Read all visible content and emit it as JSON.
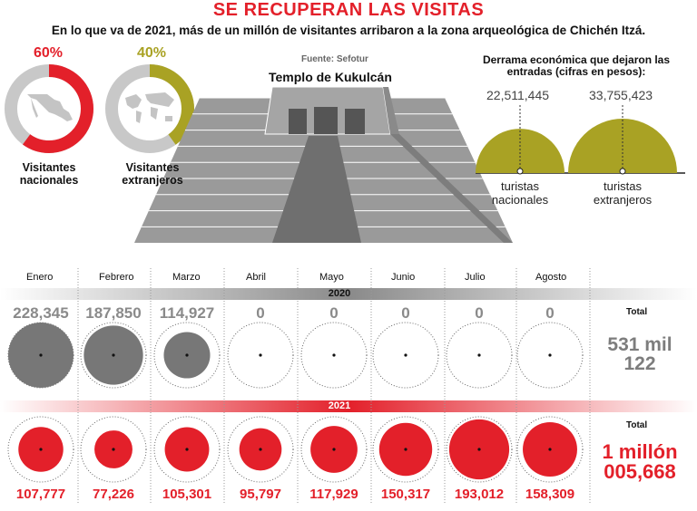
{
  "header": {
    "title": "SE RECUPERAN LAS VISITAS",
    "subtitle": "En lo que va de 2021, más de un millón de visitantes arribaron a la zona arqueológica de Chichén Itzá."
  },
  "visitor_split": {
    "national": {
      "percent_label": "60%",
      "label_line1": "Visitantes",
      "label_line2": "nacionales",
      "color": "#e3202a"
    },
    "foreign": {
      "percent_label": "40%",
      "label_line1": "Visitantes",
      "label_line2": "extranjeros",
      "color": "#a9a224"
    }
  },
  "source": "Fuente: Sefotur",
  "temple_title": "Templo de Kukulcán",
  "derrama": {
    "title_line1": "Derrama económica que dejaron las",
    "title_line2": "entradas (cifras en pesos):",
    "national": {
      "amount": "22,511,445",
      "line1": "turistas",
      "line2": "nacionales"
    },
    "foreign": {
      "amount": "33,755,423",
      "line1": "turistas",
      "line2": "extranjeros"
    }
  },
  "totals": {
    "label": "Total",
    "total_2020_line1": "531 mil",
    "total_2020_line2": "122",
    "total_2021_line1": "1 millón",
    "total_2021_line2": "005,668"
  },
  "chart_data": [
    {
      "type": "pie",
      "title": "",
      "categories": [
        "Visitantes nacionales",
        "Visitantes extranjeros"
      ],
      "values": [
        60,
        40
      ]
    },
    {
      "type": "bar",
      "title": "Derrama económica que dejaron las entradas (cifras en pesos):",
      "categories": [
        "turistas nacionales",
        "turistas extranjeros"
      ],
      "values": [
        22511445,
        33755423
      ],
      "value_labels": [
        "22,511,445",
        "33,755,423"
      ]
    },
    {
      "type": "scatter",
      "title": "",
      "categories": [
        "Enero",
        "Febrero",
        "Marzo",
        "Abril",
        "Mayo",
        "Junio",
        "Julio",
        "Agosto"
      ],
      "series": [
        {
          "name": "2020",
          "values": [
            228345,
            187850,
            114927,
            0,
            0,
            0,
            0,
            0
          ],
          "value_labels": [
            "228,345",
            "187,850",
            "114,927",
            "0",
            "0",
            "0",
            "0",
            "0"
          ],
          "color": "#777777"
        },
        {
          "name": "2021",
          "values": [
            107777,
            77226,
            105301,
            95797,
            117929,
            150317,
            193012,
            158309
          ],
          "value_labels": [
            "107,777",
            "77,226",
            "105,301",
            "95,797",
            "117,929",
            "150,317",
            "193,012",
            "158,309"
          ],
          "color": "#e3202a"
        }
      ],
      "grid": false
    }
  ]
}
